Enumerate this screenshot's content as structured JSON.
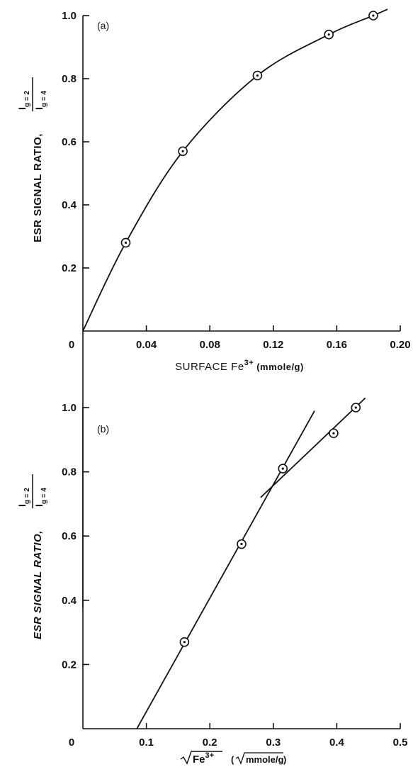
{
  "chart_data": [
    {
      "type": "line",
      "panel_label": "(a)",
      "ylabel": {
        "text": "ESR SIGNAL RATIO,",
        "numerator": "I",
        "numerator_sub": "g = 2",
        "denominator": "I",
        "denominator_sub": "g = 4"
      },
      "xlabel": {
        "text": "SURFACE Fe",
        "sup": "3+",
        "unit": "(mmole/g)"
      },
      "xlim": [
        0,
        0.2
      ],
      "ylim": [
        0,
        1.0
      ],
      "x_ticks": [
        0,
        0.04,
        0.08,
        0.12,
        0.16,
        0.2
      ],
      "x_tick_labels": [
        "0",
        "0.04",
        "0.08",
        "0.12",
        "0.16",
        "0.20"
      ],
      "y_ticks": [
        0.2,
        0.4,
        0.6,
        0.8,
        1.0
      ],
      "y_tick_labels": [
        "0.2",
        "0.4",
        "0.6",
        "0.8",
        "1.0"
      ],
      "series": [
        {
          "points": [
            {
              "x": 0.027,
              "y": 0.28
            },
            {
              "x": 0.063,
              "y": 0.57
            },
            {
              "x": 0.11,
              "y": 0.81
            },
            {
              "x": 0.155,
              "y": 0.94
            },
            {
              "x": 0.183,
              "y": 1.0
            }
          ],
          "curve": [
            {
              "x": 0.0,
              "y": 0.0
            },
            {
              "x": 0.027,
              "y": 0.28
            },
            {
              "x": 0.063,
              "y": 0.57
            },
            {
              "x": 0.11,
              "y": 0.81
            },
            {
              "x": 0.155,
              "y": 0.94
            },
            {
              "x": 0.183,
              "y": 1.0
            },
            {
              "x": 0.192,
              "y": 1.02
            }
          ]
        }
      ]
    },
    {
      "type": "line",
      "panel_label": "(b)",
      "ylabel": {
        "text": "ESR SIGNAL RATIO,",
        "numerator": "I",
        "numerator_sub": "g = 2",
        "denominator": "I",
        "denominator_sub": "g = 4"
      },
      "xlabel": {
        "text": "Fe",
        "sup": "3+",
        "unit": "mmole/g"
      },
      "xlim": [
        0,
        0.5
      ],
      "ylim": [
        0,
        1.0
      ],
      "x_ticks": [
        0,
        0.1,
        0.2,
        0.3,
        0.4,
        0.5
      ],
      "x_tick_labels": [
        "0",
        "0.1",
        "0.2",
        "0.3",
        "0.4",
        "0.5"
      ],
      "y_ticks": [
        0.2,
        0.4,
        0.6,
        0.8,
        1.0
      ],
      "y_tick_labels": [
        "0.2",
        "0.4",
        "0.6",
        "0.8",
        "1.0"
      ],
      "series": [
        {
          "points": [
            {
              "x": 0.16,
              "y": 0.27
            },
            {
              "x": 0.25,
              "y": 0.575
            },
            {
              "x": 0.315,
              "y": 0.81
            },
            {
              "x": 0.395,
              "y": 0.92
            },
            {
              "x": 0.43,
              "y": 1.0
            }
          ],
          "lines": [
            [
              {
                "x": 0.085,
                "y": 0.0
              },
              {
                "x": 0.365,
                "y": 0.99
              }
            ],
            [
              {
                "x": 0.28,
                "y": 0.72
              },
              {
                "x": 0.445,
                "y": 1.03
              }
            ]
          ]
        }
      ]
    }
  ]
}
